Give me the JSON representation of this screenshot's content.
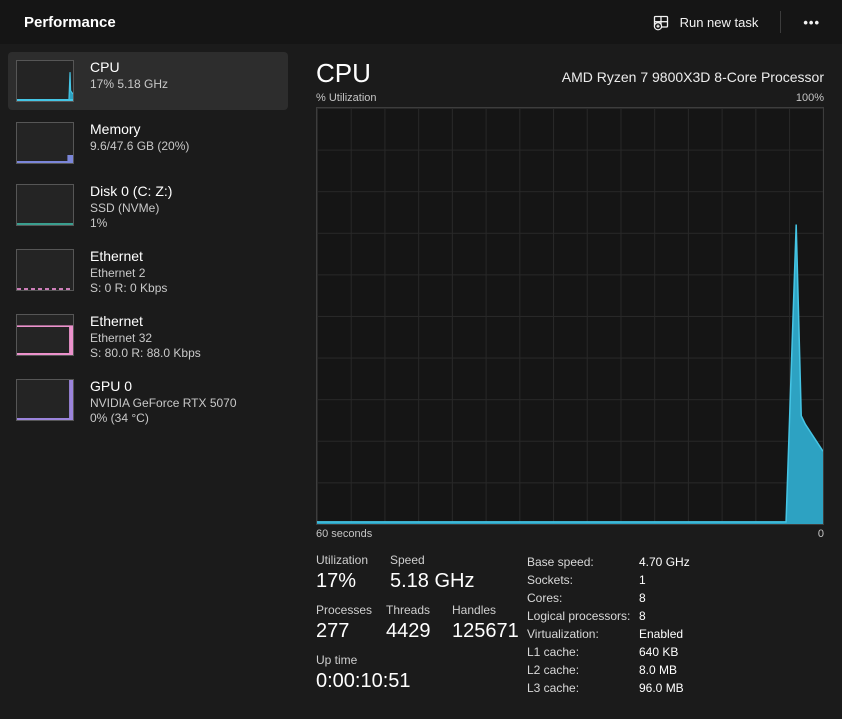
{
  "header": {
    "title": "Performance",
    "run_new_task": "Run new task",
    "more": "•••"
  },
  "sidebar": {
    "items": [
      {
        "title": "CPU",
        "lines": [
          "17%  5.18 GHz"
        ],
        "selected": true
      },
      {
        "title": "Memory",
        "lines": [
          "9.6/47.6 GB (20%)"
        ]
      },
      {
        "title": "Disk 0 (C: Z:)",
        "lines": [
          "SSD (NVMe)",
          "1%"
        ]
      },
      {
        "title": "Ethernet",
        "lines": [
          "Ethernet 2",
          "S: 0 R: 0 Kbps"
        ]
      },
      {
        "title": "Ethernet",
        "lines": [
          "Ethernet 32",
          "S: 80.0 R: 88.0 Kbps"
        ]
      },
      {
        "title": "GPU 0",
        "lines": [
          "NVIDIA GeForce RTX 5070",
          "0% (34 °C)"
        ]
      }
    ]
  },
  "main": {
    "title": "CPU",
    "subtitle": "AMD Ryzen 7 9800X3D 8-Core Processor",
    "axis_top_left": "% Utilization",
    "axis_top_right": "100%",
    "axis_bottom_left": "60 seconds",
    "axis_bottom_right": "0",
    "stats": {
      "utilization": {
        "label": "Utilization",
        "value": "17%"
      },
      "speed": {
        "label": "Speed",
        "value": "5.18 GHz"
      },
      "processes": {
        "label": "Processes",
        "value": "277"
      },
      "threads": {
        "label": "Threads",
        "value": "4429"
      },
      "handles": {
        "label": "Handles",
        "value": "125671"
      },
      "uptime": {
        "label": "Up time",
        "value": "0:00:10:51"
      }
    },
    "details": [
      {
        "label": "Base speed:",
        "value": "4.70 GHz"
      },
      {
        "label": "Sockets:",
        "value": "1"
      },
      {
        "label": "Cores:",
        "value": "8"
      },
      {
        "label": "Logical processors:",
        "value": "8"
      },
      {
        "label": "Virtualization:",
        "value": "Enabled"
      },
      {
        "label": "L1 cache:",
        "value": "640 KB"
      },
      {
        "label": "L2 cache:",
        "value": "8.0 MB"
      },
      {
        "label": "L3 cache:",
        "value": "96.0 MB"
      }
    ]
  },
  "colors": {
    "cpu_fill": "#2da2c2",
    "cpu_line": "#45c5e5",
    "memory": "#7b86d9",
    "disk": "#3a9e8f",
    "ethernet": "#cc7eb8",
    "ethernet_active": "#ec92cc",
    "gpu": "#9b84dc"
  },
  "chart_data": {
    "type": "area",
    "title": "CPU % Utilization over 60 seconds",
    "xlabel": "60 seconds → 0",
    "ylabel": "% Utilization",
    "ylim": [
      0,
      100
    ],
    "grid": true,
    "series": [
      {
        "name": "% Utilization",
        "points_pct_of_window_vs_utilization": [
          [
            0,
            0.5
          ],
          [
            92.7,
            0.5
          ],
          [
            94.7,
            72
          ],
          [
            95.7,
            26
          ],
          [
            96.5,
            24
          ],
          [
            100,
            17.5
          ]
        ]
      }
    ]
  }
}
